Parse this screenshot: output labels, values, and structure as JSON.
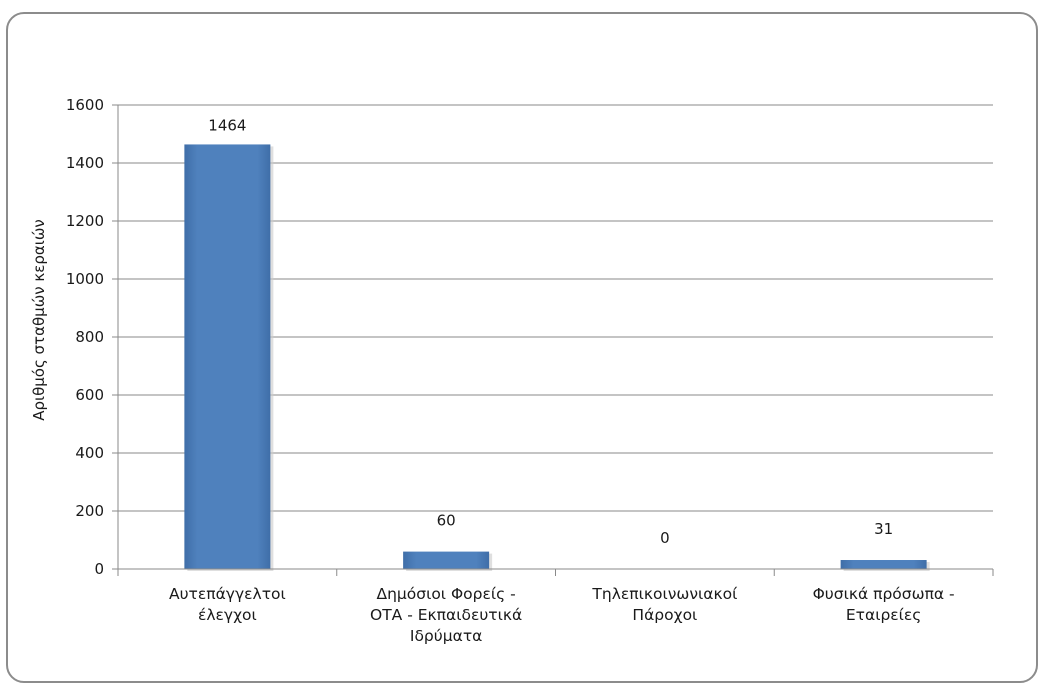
{
  "chart_data": {
    "type": "bar",
    "title": "",
    "xlabel": "",
    "ylabel": "Αριθμός σταθμών κεραιών",
    "ylim": [
      0,
      1600
    ],
    "yticks": [
      0,
      200,
      400,
      600,
      800,
      1000,
      1200,
      1400,
      1600
    ],
    "grid": true,
    "legend": "none",
    "bar_color": "#4f81bd",
    "categories": [
      [
        "Αυτεπάγγελτοι",
        "έλεγχοι"
      ],
      [
        "Δημόσιοι Φορείς -",
        "ΟΤΑ - Εκπαιδευτικά",
        "Ιδρύματα"
      ],
      [
        "Τηλεπικοινωνιακοί",
        "Πάροχοι"
      ],
      [
        "Φυσικά πρόσωπα -",
        "Εταιρείες"
      ]
    ],
    "values": [
      1464,
      60,
      0,
      31
    ],
    "data_labels": [
      "1464",
      "60",
      "0",
      "31"
    ]
  }
}
